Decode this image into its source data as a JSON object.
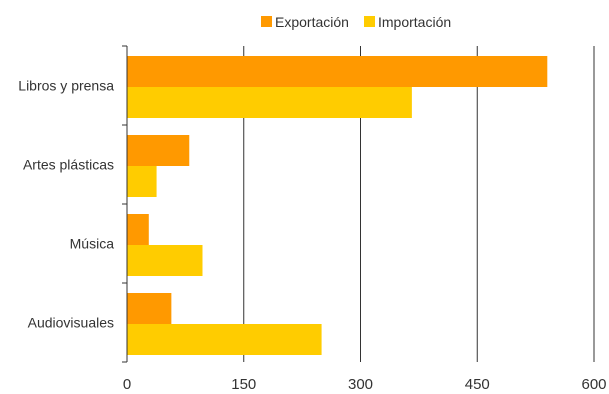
{
  "chart_data": {
    "type": "bar",
    "orientation": "horizontal",
    "categories": [
      "Libros y prensa",
      "Artes plásticas",
      "Música",
      "Audiovisuales"
    ],
    "series": [
      {
        "name": "Exportación",
        "color": "#FF9900",
        "values": [
          540,
          80,
          28,
          57
        ]
      },
      {
        "name": "Importación",
        "color": "#FFCC00",
        "values": [
          366,
          38,
          97,
          250
        ]
      }
    ],
    "xlim": [
      0,
      600
    ],
    "xticks": [
      0,
      150,
      300,
      450,
      600
    ],
    "grid": "vertical",
    "legend": "top-center",
    "title": "",
    "xlabel": "",
    "ylabel": ""
  }
}
